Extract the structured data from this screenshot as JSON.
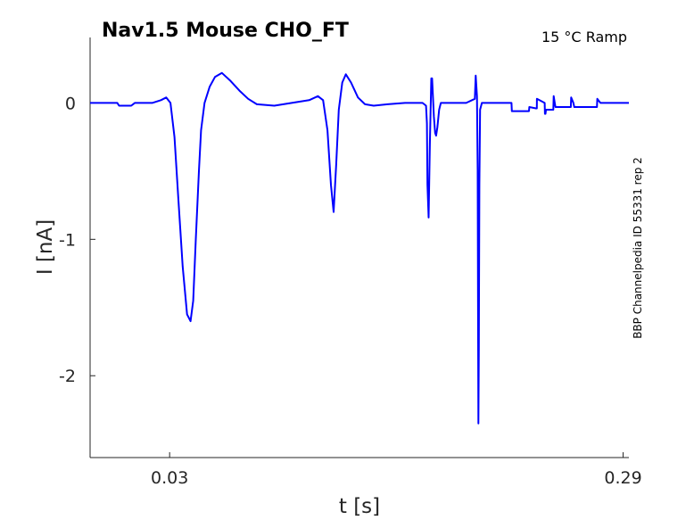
{
  "chart_data": {
    "type": "line",
    "title": "Nav1.5  Mouse  CHO_FT",
    "corner_label": "15 °C  Ramp",
    "side_label": "BBP Channelpedia ID 55331 rep 2",
    "xlabel": "t [s]",
    "ylabel": "I [nA]",
    "xlim": [
      -0.0156,
      0.2933
    ],
    "ylim": [
      -2.6,
      0.48
    ],
    "xticks": [
      0.03,
      0.29
    ],
    "xtick_labels": [
      "0.03",
      "0.29"
    ],
    "yticks": [
      0,
      -1,
      -2
    ],
    "ytick_labels": [
      "0",
      "-1",
      "-2"
    ],
    "grid": false,
    "series": [
      {
        "color": "#0000ff",
        "x": [
          -0.0156,
          0.0,
          0.001,
          0.008,
          0.01,
          0.02,
          0.025,
          0.028,
          0.0305,
          0.0328,
          0.035,
          0.0375,
          0.04,
          0.042,
          0.0435,
          0.045,
          0.0468,
          0.048,
          0.05,
          0.053,
          0.056,
          0.06,
          0.065,
          0.07,
          0.075,
          0.08,
          0.09,
          0.1,
          0.11,
          0.115,
          0.118,
          0.1205,
          0.1225,
          0.124,
          0.1255,
          0.127,
          0.129,
          0.131,
          0.134,
          0.138,
          0.142,
          0.147,
          0.155,
          0.165,
          0.175,
          0.177,
          0.1775,
          0.1778,
          0.1785,
          0.1792,
          0.18,
          0.1805,
          0.1815,
          0.1822,
          0.1828,
          0.1835,
          0.1845,
          0.1855,
          0.187,
          0.19,
          0.195,
          0.2,
          0.205,
          0.2055,
          0.2062,
          0.2066,
          0.2068,
          0.207,
          0.2073,
          0.2076,
          0.208,
          0.209,
          0.215,
          0.22,
          0.226,
          0.2262,
          0.235,
          0.236,
          0.2362,
          0.24,
          0.2405,
          0.24055,
          0.245,
          0.2452,
          0.2455,
          0.2458,
          0.25,
          0.2502,
          0.2508,
          0.2512,
          0.26,
          0.2602,
          0.2615,
          0.262,
          0.275,
          0.2752,
          0.277,
          0.2775,
          0.2933
        ],
        "y": [
          0.0,
          0.0,
          -0.02,
          -0.02,
          0.0,
          0.0,
          0.02,
          0.04,
          0.0,
          -0.25,
          -0.7,
          -1.2,
          -1.55,
          -1.6,
          -1.45,
          -1.0,
          -0.5,
          -0.2,
          0.0,
          0.12,
          0.19,
          0.22,
          0.16,
          0.09,
          0.03,
          -0.01,
          -0.02,
          0.0,
          0.02,
          0.05,
          0.02,
          -0.2,
          -0.6,
          -0.8,
          -0.45,
          -0.05,
          0.15,
          0.21,
          0.15,
          0.04,
          -0.01,
          -0.02,
          -0.01,
          0.0,
          0.0,
          -0.02,
          -0.15,
          -0.6,
          -0.84,
          -0.3,
          0.18,
          0.18,
          -0.1,
          -0.22,
          -0.24,
          -0.18,
          -0.05,
          0.0,
          0.0,
          0.0,
          0.0,
          0.0,
          0.03,
          0.2,
          0.05,
          -0.5,
          -1.5,
          -2.35,
          -1.8,
          -0.6,
          -0.05,
          0.0,
          0.0,
          0.0,
          0.0,
          -0.06,
          -0.06,
          -0.06,
          -0.03,
          -0.04,
          -0.04,
          0.03,
          0.0,
          -0.08,
          -0.08,
          -0.05,
          -0.05,
          0.05,
          0.0,
          -0.03,
          -0.03,
          0.04,
          0.0,
          -0.03,
          -0.03,
          0.03,
          0.0,
          0.0,
          0.0
        ]
      }
    ]
  }
}
